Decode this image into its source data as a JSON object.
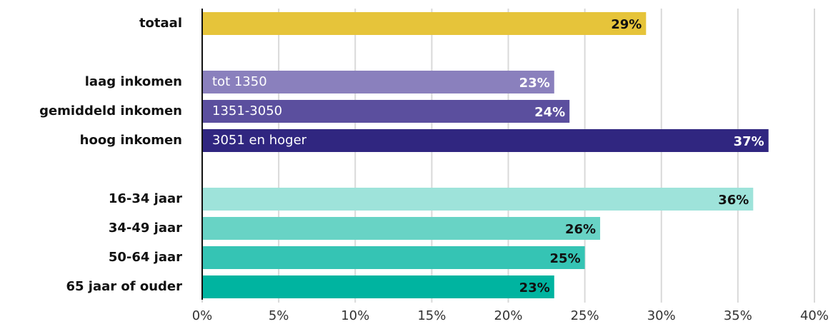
{
  "chart_data": {
    "type": "hbar",
    "categories": [
      "totaal",
      null,
      "laag inkomen",
      "gemiddeld inkomen",
      "hoog inkomen",
      null,
      "16-34 jaar",
      "34-49 jaar",
      "50-64 jaar",
      "65 jaar of ouder"
    ],
    "values": [
      29,
      null,
      23,
      24,
      37,
      null,
      36,
      26,
      25,
      23
    ],
    "value_labels": [
      "29%",
      null,
      "23%",
      "24%",
      "37%",
      null,
      "36%",
      "26%",
      "25%",
      "23%"
    ],
    "bar_notes": [
      null,
      null,
      "tot 1350",
      "1351-3050",
      "3051 en hoger",
      null,
      null,
      null,
      null,
      null
    ],
    "colors": [
      "#e6c43a",
      null,
      "#8a80bd",
      "#5b4f9e",
      "#302680",
      null,
      "#9ee3da",
      "#68d3c5",
      "#35c4b4",
      "#00b4a0"
    ],
    "value_label_colors": [
      "#111111",
      null,
      "#ffffff",
      "#ffffff",
      "#ffffff",
      null,
      "#111111",
      "#111111",
      "#111111",
      "#111111"
    ],
    "xlim": [
      0,
      40
    ],
    "xticks": [
      {
        "value": 0,
        "label": "0%"
      },
      {
        "value": 5,
        "label": "5%"
      },
      {
        "value": 10,
        "label": "10%"
      },
      {
        "value": 15,
        "label": "15%"
      },
      {
        "value": 20,
        "label": "20%"
      },
      {
        "value": 25,
        "label": "25%"
      },
      {
        "value": 30,
        "label": "30%"
      },
      {
        "value": 35,
        "label": "35%"
      },
      {
        "value": 40,
        "label": "40%"
      }
    ],
    "grid": true
  }
}
